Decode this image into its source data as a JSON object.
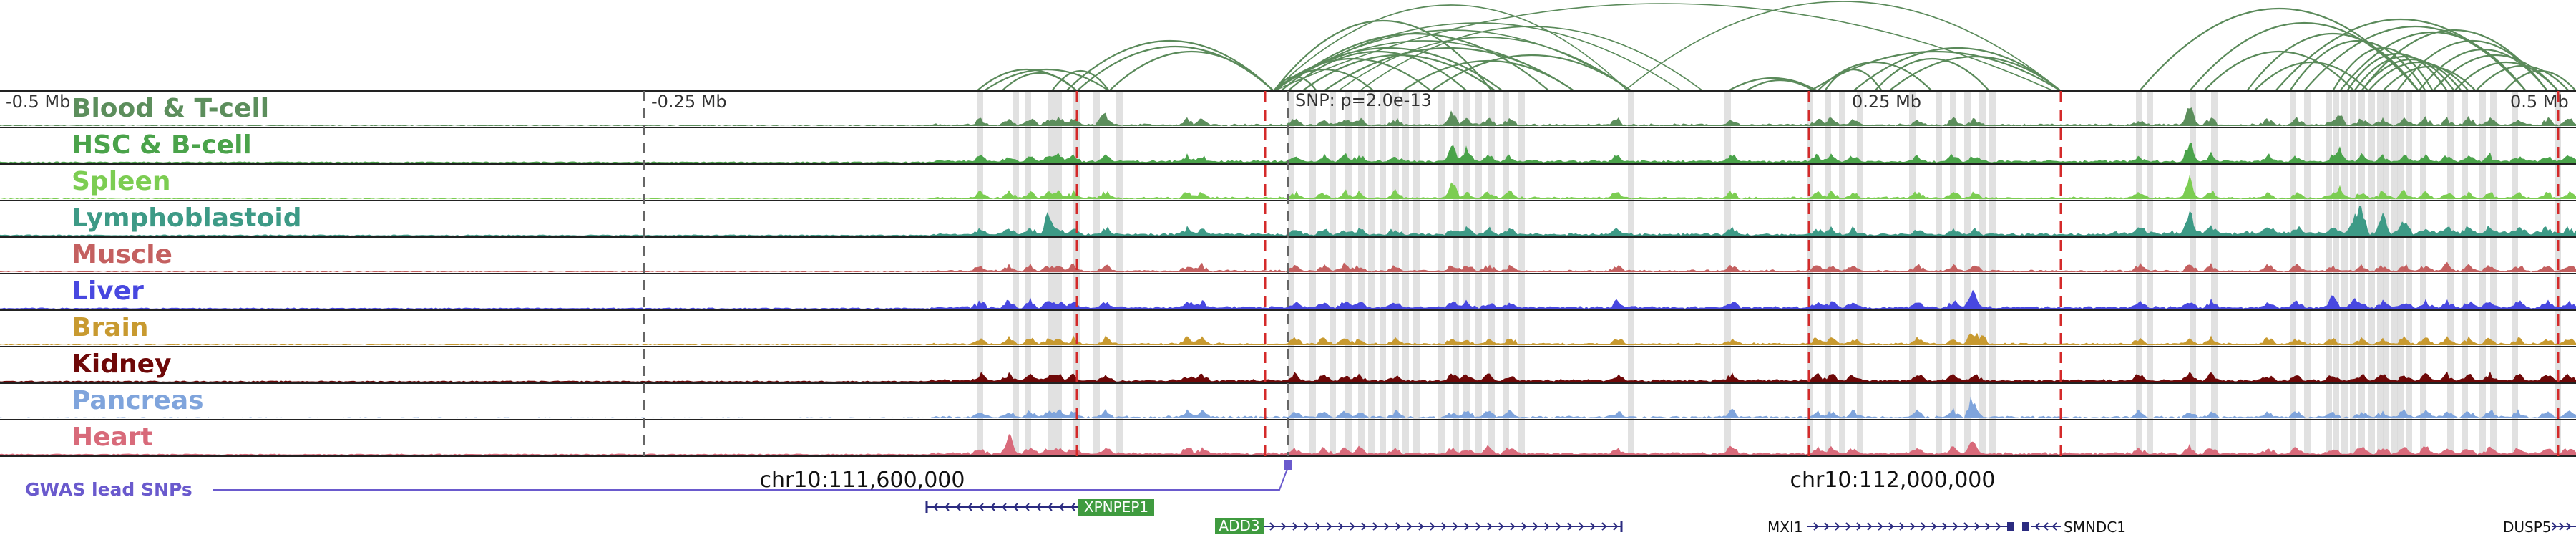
{
  "region": {
    "start_mb": -0.5,
    "end_mb": 0.5,
    "center_coord_label": "chr10:111,600,000",
    "right_coord_label": "chr10:112,000,000"
  },
  "axis_labels": {
    "neg_half": "-0.5 Mb",
    "neg_quarter": "-0.25 Mb",
    "pos_quarter": "0.25 Mb",
    "pos_half": "0.5 Mb"
  },
  "snp_label": "SNP: p=2.0e-13",
  "gwas_label": "GWAS lead SNPs",
  "colors": {
    "arc": "#5a8a5a",
    "highlight": "#dadada",
    "red_line": "#d42a2a",
    "track_border": "#222222",
    "gwas": "#6a5acd",
    "gene": "#2b2b80",
    "gene_label_bg": "#3f9b3f"
  },
  "tracks": [
    {
      "name": "Blood & T-cell",
      "color": "#5c8e5c"
    },
    {
      "name": "HSC & B-cell",
      "color": "#4aa34a"
    },
    {
      "name": "Spleen",
      "color": "#7ccd52"
    },
    {
      "name": "Lymphoblastoid",
      "color": "#3d9a86"
    },
    {
      "name": "Muscle",
      "color": "#c46060"
    },
    {
      "name": "Liver",
      "color": "#4848e0"
    },
    {
      "name": "Brain",
      "color": "#c89a30"
    },
    {
      "name": "Kidney",
      "color": "#6e0808"
    },
    {
      "name": "Pancreas",
      "color": "#7fa4dc"
    },
    {
      "name": "Heart",
      "color": "#d86a7a"
    }
  ],
  "genes": [
    {
      "name": "XPNPEP1",
      "boxed": true
    },
    {
      "name": "ADD3",
      "boxed": true
    },
    {
      "name": "MXI1",
      "boxed": false
    },
    {
      "name": "SMNDC1",
      "boxed": false
    },
    {
      "name": "DUSP5",
      "boxed": false
    }
  ]
}
